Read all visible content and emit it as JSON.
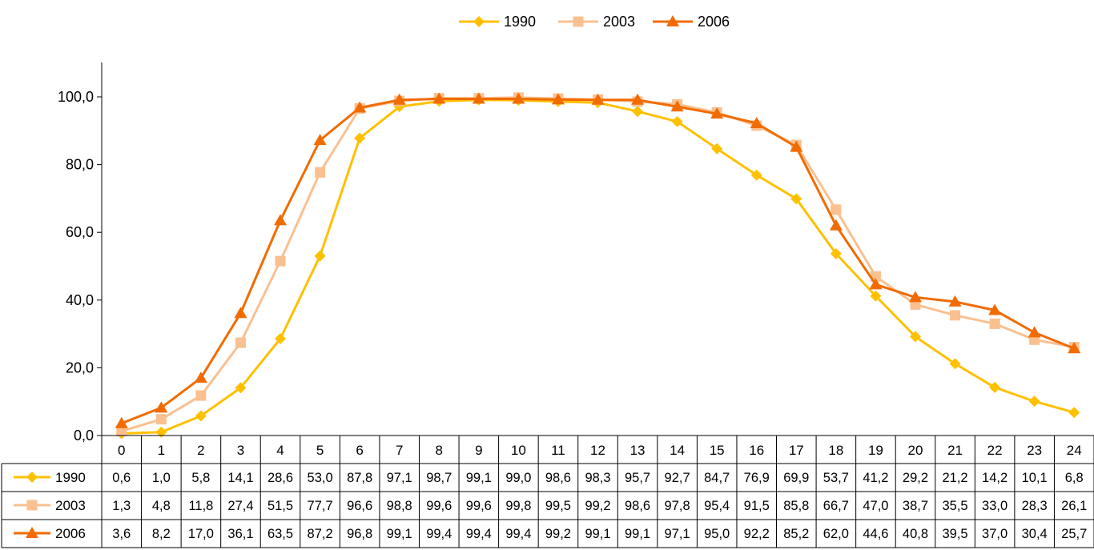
{
  "chart_data": {
    "type": "line",
    "title": "",
    "xlabel": "",
    "ylabel": "",
    "categories": [
      "0",
      "1",
      "2",
      "3",
      "4",
      "5",
      "6",
      "7",
      "8",
      "9",
      "10",
      "11",
      "12",
      "13",
      "14",
      "15",
      "16",
      "17",
      "18",
      "19",
      "20",
      "21",
      "22",
      "23",
      "24"
    ],
    "ylim": [
      0,
      100
    ],
    "yticks": [
      "0,0",
      "20,0",
      "40,0",
      "60,0",
      "80,0",
      "100,0"
    ],
    "grid": false,
    "legend_position": "top",
    "data_table": true,
    "series": [
      {
        "name": "1990",
        "color": "#FFC000",
        "marker": "diamond",
        "values": [
          0.6,
          1.0,
          5.8,
          14.1,
          28.6,
          53.0,
          87.8,
          97.1,
          98.7,
          99.1,
          99.0,
          98.6,
          98.3,
          95.7,
          92.7,
          84.7,
          76.9,
          69.9,
          53.7,
          41.2,
          29.2,
          21.2,
          14.2,
          10.1,
          6.8
        ],
        "labels": [
          "0,6",
          "1,0",
          "5,8",
          "14,1",
          "28,6",
          "53,0",
          "87,8",
          "97,1",
          "98,7",
          "99,1",
          "99,0",
          "98,6",
          "98,3",
          "95,7",
          "92,7",
          "84,7",
          "76,9",
          "69,9",
          "53,7",
          "41,2",
          "29,2",
          "21,2",
          "14,2",
          "10,1",
          "6,8"
        ]
      },
      {
        "name": "2003",
        "color": "#FAC090",
        "marker": "square",
        "values": [
          1.3,
          4.8,
          11.8,
          27.4,
          51.5,
          77.7,
          96.6,
          98.8,
          99.6,
          99.6,
          99.8,
          99.5,
          99.2,
          98.6,
          97.8,
          95.4,
          91.5,
          85.8,
          66.7,
          47.0,
          38.7,
          35.5,
          33.0,
          28.3,
          26.1
        ],
        "labels": [
          "1,3",
          "4,8",
          "11,8",
          "27,4",
          "51,5",
          "77,7",
          "96,6",
          "98,8",
          "99,6",
          "99,6",
          "99,8",
          "99,5",
          "99,2",
          "98,6",
          "97,8",
          "95,4",
          "91,5",
          "85,8",
          "66,7",
          "47,0",
          "38,7",
          "35,5",
          "33,0",
          "28,3",
          "26,1"
        ]
      },
      {
        "name": "2006",
        "color": "#F26B00",
        "marker": "triangle",
        "values": [
          3.6,
          8.2,
          17.0,
          36.1,
          63.5,
          87.2,
          96.8,
          99.1,
          99.4,
          99.4,
          99.4,
          99.2,
          99.1,
          99.1,
          97.1,
          95.0,
          92.2,
          85.2,
          62.0,
          44.6,
          40.8,
          39.5,
          37.0,
          30.4,
          25.7
        ],
        "labels": [
          "3,6",
          "8,2",
          "17,0",
          "36,1",
          "63,5",
          "87,2",
          "96,8",
          "99,1",
          "99,4",
          "99,4",
          "99,4",
          "99,2",
          "99,1",
          "99,1",
          "97,1",
          "95,0",
          "92,2",
          "85,2",
          "62,0",
          "44,6",
          "40,8",
          "39,5",
          "37,0",
          "30,4",
          "25,7"
        ]
      }
    ]
  }
}
